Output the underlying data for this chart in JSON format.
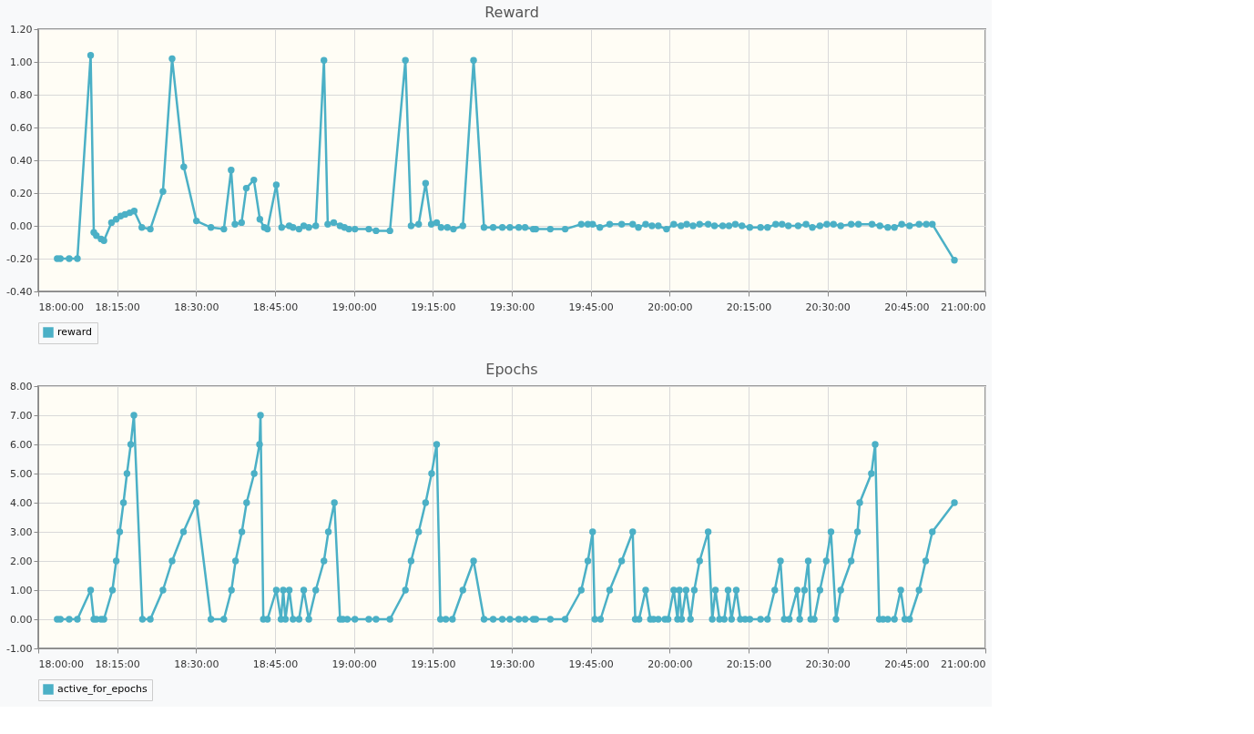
{
  "chart_data": [
    {
      "type": "line",
      "title": "Reward",
      "legend": "bottom",
      "grid": true,
      "marker": "circle",
      "line_style": "solid",
      "xlim": [
        18,
        21
      ],
      "xticks": [
        {
          "value": 18,
          "label": "18:00:00"
        },
        {
          "value": 18.25,
          "label": "18:15:00"
        },
        {
          "value": 18.5,
          "label": "18:30:00"
        },
        {
          "value": 18.75,
          "label": "18:45:00"
        },
        {
          "value": 19,
          "label": "19:00:00"
        },
        {
          "value": 19.25,
          "label": "19:15:00"
        },
        {
          "value": 19.5,
          "label": "19:30:00"
        },
        {
          "value": 19.75,
          "label": "19:45:00"
        },
        {
          "value": 20,
          "label": "20:00:00"
        },
        {
          "value": 20.25,
          "label": "20:15:00"
        },
        {
          "value": 20.5,
          "label": "20:30:00"
        },
        {
          "value": 20.75,
          "label": "20:45:00"
        },
        {
          "value": 21,
          "label": "21:00:00"
        }
      ],
      "ylim": [
        -0.4,
        1.2
      ],
      "yticks": [
        {
          "value": -0.4,
          "label": "-0.40"
        },
        {
          "value": -0.2,
          "label": "-0.20"
        },
        {
          "value": 0,
          "label": "0.00"
        },
        {
          "value": 0.2,
          "label": "0.20"
        },
        {
          "value": 0.4,
          "label": "0.40"
        },
        {
          "value": 0.6,
          "label": "0.60"
        },
        {
          "value": 0.8,
          "label": "0.80"
        },
        {
          "value": 1,
          "label": "1.00"
        },
        {
          "value": 1.2,
          "label": "1.20"
        }
      ],
      "series": [
        {
          "name": "reward",
          "color": "#4bb0c6",
          "x": [
            18.06,
            18.07,
            18.098,
            18.124,
            18.166,
            18.176,
            18.184,
            18.199,
            18.208,
            18.232,
            18.247,
            18.261,
            18.275,
            18.29,
            18.304,
            18.328,
            18.355,
            18.395,
            18.424,
            18.461,
            18.501,
            18.547,
            18.588,
            18.611,
            18.623,
            18.644,
            18.659,
            18.683,
            18.702,
            18.716,
            18.726,
            18.754,
            18.771,
            18.795,
            18.807,
            18.826,
            18.841,
            18.857,
            18.879,
            18.905,
            18.917,
            18.936,
            18.956,
            18.97,
            18.984,
            19.003,
            19.047,
            19.07,
            19.114,
            19.163,
            19.181,
            19.205,
            19.227,
            19.245,
            19.262,
            19.276,
            19.296,
            19.315,
            19.345,
            19.379,
            19.412,
            19.441,
            19.47,
            19.494,
            19.522,
            19.542,
            19.568,
            19.576,
            19.622,
            19.669,
            19.72,
            19.741,
            19.756,
            19.779,
            19.81,
            19.848,
            19.883,
            19.901,
            19.924,
            19.944,
            19.964,
            19.99,
            20.013,
            20.036,
            20.054,
            20.074,
            20.095,
            20.122,
            20.142,
            20.168,
            20.188,
            20.208,
            20.229,
            20.254,
            20.288,
            20.31,
            20.336,
            20.356,
            20.376,
            20.407,
            20.432,
            20.452,
            20.476,
            20.498,
            20.519,
            20.542,
            20.575,
            20.598,
            20.641,
            20.666,
            20.691,
            20.712,
            20.735,
            20.76,
            20.79,
            20.813,
            20.832,
            20.902
          ],
          "values": [
            -0.2,
            -0.2,
            -0.2,
            -0.2,
            1.04,
            -0.04,
            -0.06,
            -0.08,
            -0.09,
            0.02,
            0.04,
            0.06,
            0.07,
            0.08,
            0.09,
            -0.01,
            -0.02,
            0.21,
            1.02,
            0.36,
            0.03,
            -0.01,
            -0.02,
            0.34,
            0.01,
            0.02,
            0.23,
            0.28,
            0.04,
            -0.01,
            -0.02,
            0.25,
            -0.01,
            0.0,
            -0.01,
            -0.02,
            0.0,
            -0.01,
            0.0,
            1.01,
            0.01,
            0.02,
            0.0,
            -0.01,
            -0.02,
            -0.02,
            -0.02,
            -0.03,
            -0.03,
            1.01,
            0.0,
            0.01,
            0.26,
            0.01,
            0.02,
            -0.01,
            -0.01,
            -0.02,
            0.0,
            1.01,
            -0.01,
            -0.01,
            -0.01,
            -0.01,
            -0.01,
            -0.01,
            -0.02,
            -0.02,
            -0.02,
            -0.02,
            0.01,
            0.01,
            0.01,
            -0.01,
            0.01,
            0.01,
            0.01,
            -0.01,
            0.01,
            0.0,
            0.0,
            -0.02,
            0.01,
            0.0,
            0.01,
            0.0,
            0.01,
            0.01,
            0.0,
            0.0,
            0.0,
            0.01,
            0.0,
            -0.01,
            -0.01,
            -0.01,
            0.01,
            0.01,
            0.0,
            0.0,
            0.01,
            -0.01,
            0.0,
            0.01,
            0.01,
            0.0,
            0.01,
            0.01,
            0.01,
            0.0,
            -0.01,
            -0.01,
            0.01,
            0.0,
            0.01,
            0.01,
            0.01,
            -0.21
          ]
        }
      ]
    },
    {
      "type": "line",
      "title": "Epochs",
      "legend": "bottom",
      "grid": true,
      "marker": "circle",
      "line_style": "solid",
      "xlim": [
        18,
        21
      ],
      "xticks": [
        {
          "value": 18,
          "label": "18:00:00"
        },
        {
          "value": 18.25,
          "label": "18:15:00"
        },
        {
          "value": 18.5,
          "label": "18:30:00"
        },
        {
          "value": 18.75,
          "label": "18:45:00"
        },
        {
          "value": 19,
          "label": "19:00:00"
        },
        {
          "value": 19.25,
          "label": "19:15:00"
        },
        {
          "value": 19.5,
          "label": "19:30:00"
        },
        {
          "value": 19.75,
          "label": "19:45:00"
        },
        {
          "value": 20,
          "label": "20:00:00"
        },
        {
          "value": 20.25,
          "label": "20:15:00"
        },
        {
          "value": 20.5,
          "label": "20:30:00"
        },
        {
          "value": 20.75,
          "label": "20:45:00"
        },
        {
          "value": 21,
          "label": "21:00:00"
        }
      ],
      "ylim": [
        -1,
        8
      ],
      "yticks": [
        {
          "value": -1,
          "label": "-1.00"
        },
        {
          "value": 0,
          "label": "0.00"
        },
        {
          "value": 1,
          "label": "1.00"
        },
        {
          "value": 2,
          "label": "2.00"
        },
        {
          "value": 3,
          "label": "3.00"
        },
        {
          "value": 4,
          "label": "4.00"
        },
        {
          "value": 5,
          "label": "5.00"
        },
        {
          "value": 6,
          "label": "6.00"
        },
        {
          "value": 7,
          "label": "7.00"
        },
        {
          "value": 8,
          "label": "8.00"
        }
      ],
      "series": [
        {
          "name": "active_for_epochs",
          "color": "#4bb0c6",
          "x": [
            18.06,
            18.07,
            18.098,
            18.124,
            18.166,
            18.176,
            18.184,
            18.199,
            18.208,
            18.235,
            18.247,
            18.258,
            18.27,
            18.281,
            18.293,
            18.303,
            18.33,
            18.355,
            18.395,
            18.424,
            18.46,
            18.501,
            18.547,
            18.588,
            18.612,
            18.625,
            18.645,
            18.66,
            18.684,
            18.701,
            18.704,
            18.713,
            18.726,
            18.754,
            18.769,
            18.776,
            18.783,
            18.795,
            18.807,
            18.826,
            18.841,
            18.857,
            18.879,
            18.905,
            18.919,
            18.938,
            18.956,
            18.965,
            18.979,
            19.003,
            19.047,
            19.07,
            19.114,
            19.163,
            19.181,
            19.205,
            19.227,
            19.246,
            19.262,
            19.274,
            19.291,
            19.312,
            19.345,
            19.379,
            19.412,
            19.441,
            19.47,
            19.494,
            19.522,
            19.542,
            19.568,
            19.576,
            19.622,
            19.669,
            19.72,
            19.741,
            19.756,
            19.763,
            19.781,
            19.81,
            19.848,
            19.883,
            19.891,
            19.903,
            19.924,
            19.939,
            19.949,
            19.964,
            19.985,
            19.995,
            20.013,
            20.025,
            20.031,
            20.038,
            20.052,
            20.066,
            20.078,
            20.095,
            20.122,
            20.135,
            20.145,
            20.158,
            20.173,
            20.185,
            20.196,
            20.211,
            20.224,
            20.239,
            20.254,
            20.288,
            20.31,
            20.333,
            20.351,
            20.363,
            20.379,
            20.404,
            20.412,
            20.427,
            20.439,
            20.447,
            20.458,
            20.476,
            20.496,
            20.511,
            20.527,
            20.542,
            20.575,
            20.595,
            20.602,
            20.639,
            20.651,
            20.664,
            20.676,
            20.691,
            20.712,
            20.732,
            20.745,
            20.76,
            20.79,
            20.811,
            20.832,
            20.902
          ],
          "values": [
            0,
            0,
            0,
            0,
            1,
            0,
            0,
            0,
            0,
            1,
            2,
            3,
            4,
            5,
            6,
            7,
            0,
            0,
            1,
            2,
            3,
            4,
            0,
            0,
            1,
            2,
            3,
            4,
            5,
            6,
            7,
            0,
            0,
            1,
            0,
            1,
            0,
            1,
            0,
            0,
            1,
            0,
            1,
            2,
            3,
            4,
            0,
            0,
            0,
            0,
            0,
            0,
            0,
            1,
            2,
            3,
            4,
            5,
            6,
            0,
            0,
            0,
            1,
            2,
            0,
            0,
            0,
            0,
            0,
            0,
            0,
            0,
            0,
            0,
            1,
            2,
            3,
            0,
            0,
            1,
            2,
            3,
            0,
            0,
            1,
            0,
            0,
            0,
            0,
            0,
            1,
            0,
            1,
            0,
            1,
            0,
            1,
            2,
            3,
            0,
            1,
            0,
            0,
            1,
            0,
            1,
            0,
            0,
            0,
            0,
            0,
            1,
            2,
            0,
            0,
            1,
            0,
            1,
            2,
            0,
            0,
            1,
            2,
            3,
            0,
            1,
            2,
            3,
            4,
            5,
            6,
            0,
            0,
            0,
            0,
            1,
            0,
            0,
            1,
            2,
            3,
            4
          ]
        }
      ]
    }
  ]
}
